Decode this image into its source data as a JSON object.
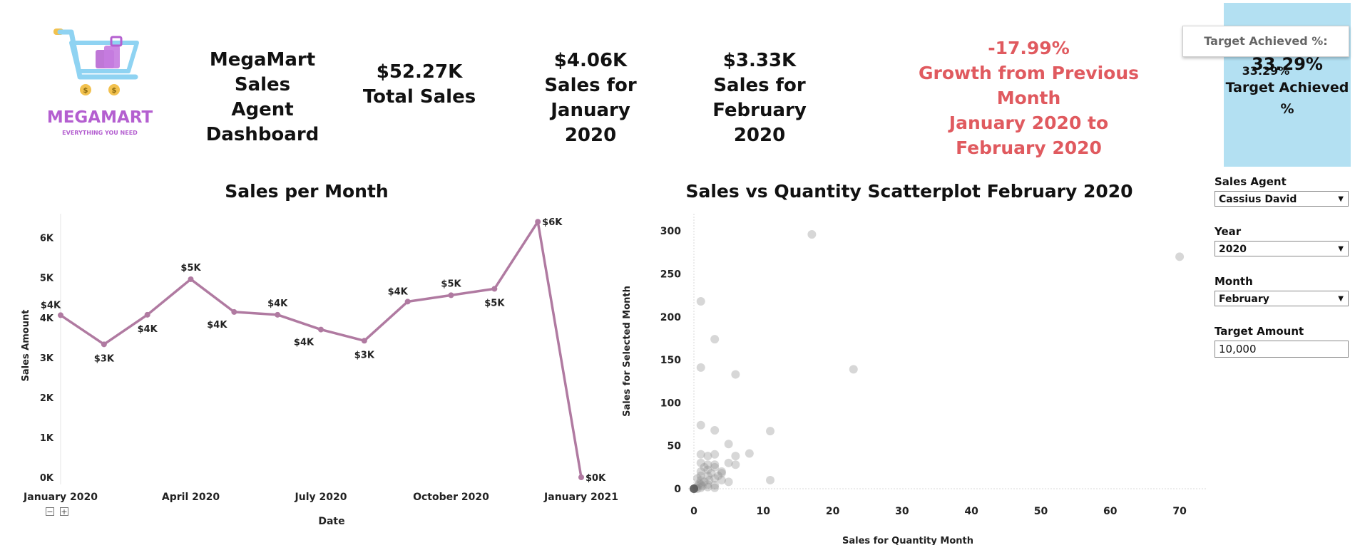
{
  "logo": {
    "brand": "MEGAMART",
    "tagline": "EVERYTHING YOU NEED",
    "brand_color": "#b45fd0",
    "icon": "shopping-cart-icon"
  },
  "header": {
    "title_line1": "MegaMart Sales",
    "title_line2": "Agent",
    "title_line3": "Dashboard",
    "total_sales_value": "$52.27K",
    "total_sales_label": "Total Sales",
    "jan_value": "$4.06K",
    "jan_label1": "Sales for January",
    "jan_label2": "2020",
    "feb_value": "$3.33K",
    "feb_label1": "Sales for",
    "feb_label2": "February 2020",
    "growth_value": "-17.99%",
    "growth_line1": "Growth from Previous Month",
    "growth_line2": "January 2020 to",
    "growth_line3": "February 2020",
    "growth_color": "#e05a5f",
    "target_value": "33.29%",
    "target_label1": "Target Achieved",
    "target_label2": "%"
  },
  "tooltip": {
    "key": "Target Achieved %:",
    "value": "33.29%"
  },
  "filters": {
    "agent_label": "Sales Agent",
    "agent_value": "Cassius David",
    "year_label": "Year",
    "year_value": "2020",
    "month_label": "Month",
    "month_value": "February",
    "target_label": "Target Amount",
    "target_value": "10,000"
  },
  "chart_data": [
    {
      "type": "line",
      "title": "Sales per Month",
      "xlabel": "Date",
      "ylabel": "Sales Amount",
      "line_color": "#b07aa1",
      "y_ticks": [
        "0K",
        "1K",
        "2K",
        "3K",
        "4K",
        "5K",
        "6K"
      ],
      "ylim": [
        0,
        6.6
      ],
      "x_ticks": [
        {
          "label": "January 2020",
          "month": 0
        },
        {
          "label": "April 2020",
          "month": 3
        },
        {
          "label": "July 2020",
          "month": 6
        },
        {
          "label": "October 2020",
          "month": 9
        },
        {
          "label": "January 2021",
          "month": 12
        }
      ],
      "points": [
        {
          "month": 0,
          "value": 4.06,
          "label": "$4K",
          "pos": "above-left"
        },
        {
          "month": 1,
          "value": 3.33,
          "label": "$3K",
          "pos": "below"
        },
        {
          "month": 2,
          "value": 4.07,
          "label": "$4K",
          "pos": "below"
        },
        {
          "month": 3,
          "value": 4.96,
          "label": "$5K",
          "pos": "above"
        },
        {
          "month": 4,
          "value": 4.14,
          "label": "$4K",
          "pos": "below-left"
        },
        {
          "month": 5,
          "value": 4.07,
          "label": "$4K",
          "pos": "above"
        },
        {
          "month": 6,
          "value": 3.7,
          "label": "$4K",
          "pos": "below-left"
        },
        {
          "month": 7,
          "value": 3.42,
          "label": "$3K",
          "pos": "below"
        },
        {
          "month": 8,
          "value": 4.4,
          "label": "$4K",
          "pos": "above-left"
        },
        {
          "month": 9,
          "value": 4.56,
          "label": "$5K",
          "pos": "above"
        },
        {
          "month": 10,
          "value": 4.72,
          "label": "$5K",
          "pos": "below"
        },
        {
          "month": 11,
          "value": 6.4,
          "label": "$6K",
          "pos": "right"
        },
        {
          "month": 12,
          "value": 0.0,
          "label": "$0K",
          "pos": "right"
        }
      ]
    },
    {
      "type": "scatter",
      "title": "Sales vs Quantity Scatterplot February 2020",
      "xlabel": "Sales for Quantity Month",
      "ylabel": "Sales for Selected Month",
      "xlim": [
        0,
        74
      ],
      "ylim": [
        0,
        320
      ],
      "x_ticks": [
        0,
        10,
        20,
        30,
        40,
        50,
        60,
        70
      ],
      "y_ticks": [
        0,
        50,
        100,
        150,
        200,
        250,
        300
      ],
      "point_color": "#8c8c8c",
      "points": [
        [
          17,
          296
        ],
        [
          70,
          270
        ],
        [
          1,
          218
        ],
        [
          3,
          174
        ],
        [
          1,
          141
        ],
        [
          6,
          133
        ],
        [
          23,
          139
        ],
        [
          11,
          67
        ],
        [
          1,
          74
        ],
        [
          3,
          68
        ],
        [
          8,
          41
        ],
        [
          5,
          52
        ],
        [
          6,
          38
        ],
        [
          5,
          30
        ],
        [
          6,
          28
        ],
        [
          11,
          10
        ],
        [
          0.5,
          0
        ],
        [
          1,
          40
        ],
        [
          2,
          38
        ],
        [
          3,
          40
        ],
        [
          1,
          30
        ],
        [
          2,
          28
        ],
        [
          3,
          25
        ],
        [
          4,
          18
        ],
        [
          1,
          20
        ],
        [
          2,
          15
        ],
        [
          3,
          12
        ],
        [
          4,
          10
        ],
        [
          5,
          8
        ],
        [
          1,
          10
        ],
        [
          2,
          5
        ],
        [
          3,
          4
        ],
        [
          1,
          5
        ],
        [
          0.5,
          3
        ],
        [
          1.5,
          8
        ],
        [
          2.5,
          18
        ],
        [
          1,
          15
        ],
        [
          0.5,
          12
        ],
        [
          2,
          22
        ],
        [
          3,
          28
        ],
        [
          1.5,
          25
        ],
        [
          4,
          20
        ],
        [
          2,
          2
        ],
        [
          1,
          1
        ],
        [
          3,
          1
        ],
        [
          0.8,
          6
        ],
        [
          1.2,
          3
        ],
        [
          2.2,
          10
        ],
        [
          3.5,
          15
        ],
        [
          0.3,
          1
        ]
      ]
    }
  ]
}
